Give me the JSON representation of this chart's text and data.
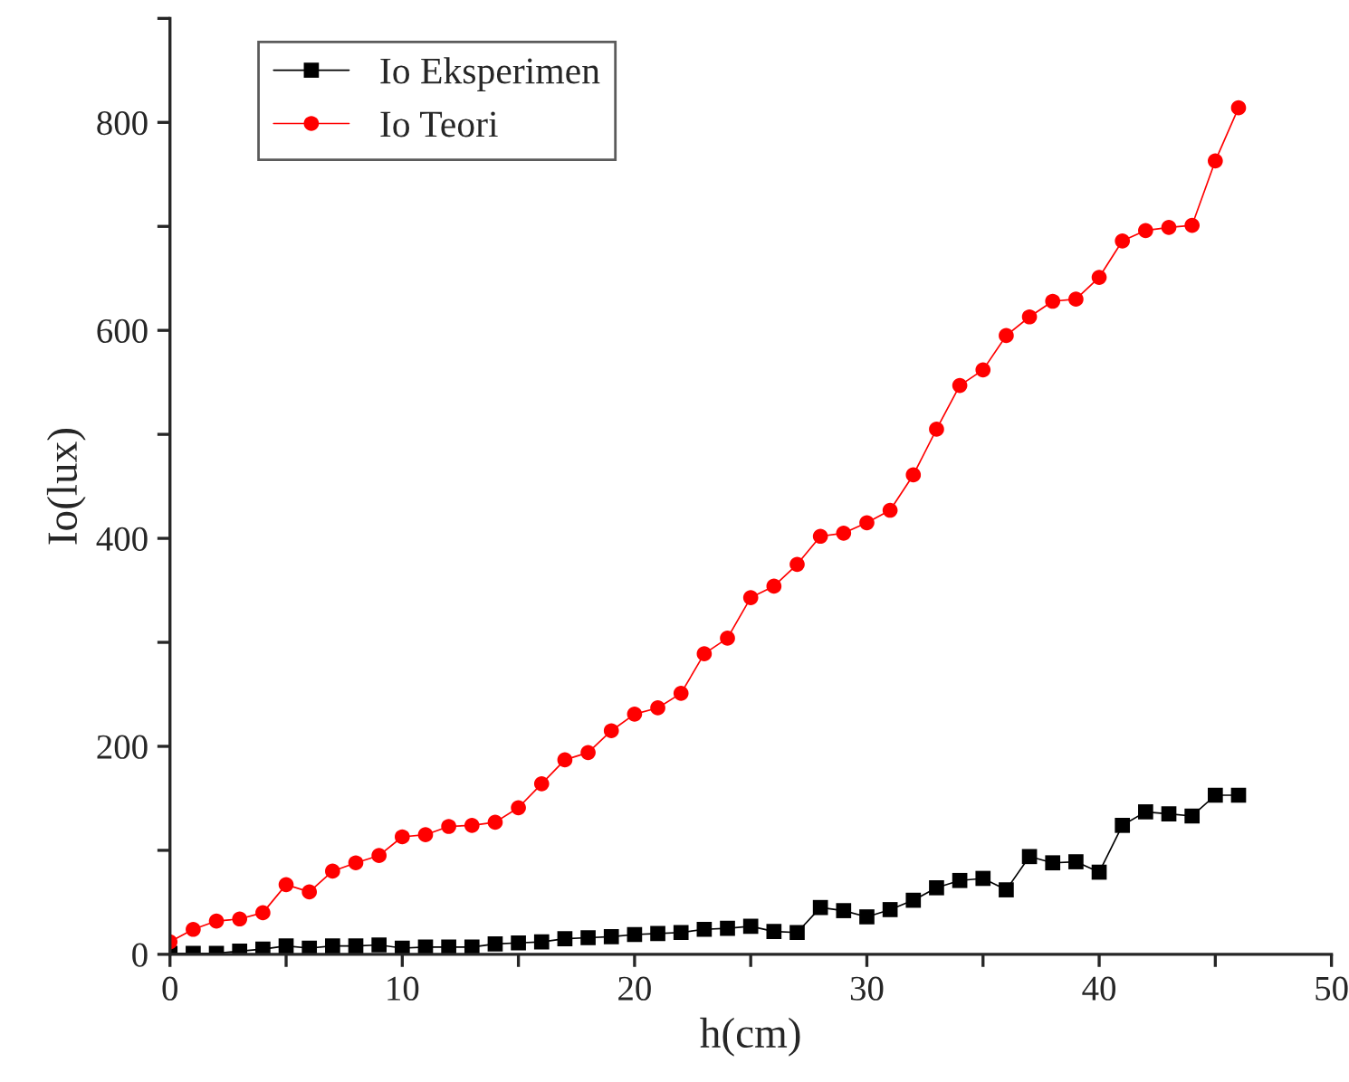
{
  "chart_data": {
    "type": "line",
    "xlabel": "h(cm)",
    "ylabel": "Io(lux)",
    "x": [
      0,
      1,
      2,
      3,
      4,
      5,
      6,
      7,
      8,
      9,
      10,
      11,
      12,
      13,
      14,
      15,
      16,
      17,
      18,
      19,
      20,
      21,
      22,
      23,
      24,
      25,
      26,
      27,
      28,
      29,
      30,
      31,
      32,
      33,
      34,
      35,
      36,
      37,
      38,
      39,
      40,
      41,
      42,
      43,
      44,
      45,
      46
    ],
    "series": [
      {
        "name": "Io Eksperimen",
        "color": "#000000",
        "marker": "square",
        "values": [
          1,
          1,
          1,
          3,
          5,
          8,
          6,
          8,
          8,
          9,
          6,
          7,
          7,
          7,
          10,
          11,
          12,
          15,
          16,
          17,
          19,
          20,
          21,
          24,
          25,
          27,
          22,
          21,
          45,
          42,
          36,
          43,
          52,
          64,
          71,
          73,
          62,
          94,
          88,
          89,
          79,
          124,
          137,
          135,
          133,
          153,
          153
        ]
      },
      {
        "name": "Io Teori",
        "color": "#ff0000",
        "marker": "circle",
        "values": [
          12,
          24,
          32,
          34,
          40,
          67,
          60,
          80,
          88,
          95,
          113,
          115,
          123,
          124,
          127,
          141,
          164,
          187,
          194,
          215,
          231,
          237,
          251,
          289,
          304,
          343,
          354,
          375,
          402,
          405,
          415,
          427,
          461,
          505,
          547,
          562,
          595,
          613,
          628,
          630,
          651,
          686,
          696,
          699,
          701,
          763,
          814
        ]
      }
    ],
    "xlim": [
      0,
      50
    ],
    "ylim": [
      0,
      900
    ],
    "xticks": [
      0,
      {
        "value": 5,
        "label": null
      },
      10,
      {
        "value": 15,
        "label": null
      },
      20,
      {
        "value": 25,
        "label": null
      },
      30,
      {
        "value": 35,
        "label": null
      },
      40,
      {
        "value": 45,
        "label": null
      },
      50
    ],
    "yticks": [
      0,
      {
        "value": 100,
        "label": null
      },
      200,
      {
        "value": 300,
        "label": null
      },
      400,
      {
        "value": 500,
        "label": null
      },
      600,
      {
        "value": 700,
        "label": null
      },
      800,
      {
        "value": 900,
        "label": null
      }
    ],
    "line_style": "solid",
    "grid": false,
    "legend": "top left"
  }
}
